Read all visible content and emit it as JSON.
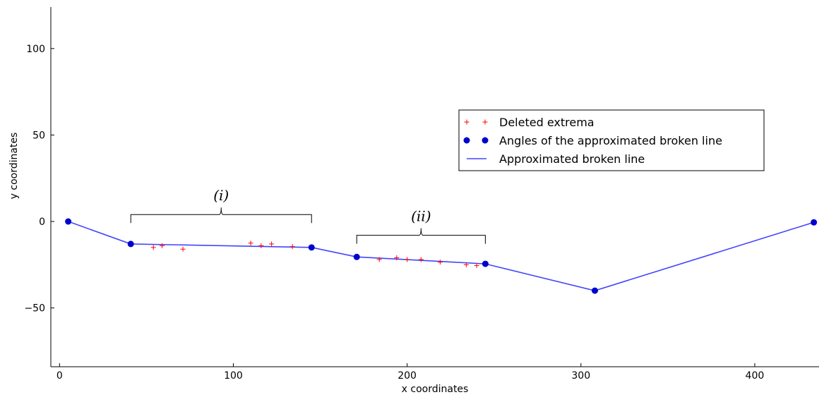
{
  "chart_data": {
    "type": "line",
    "xlabel": "x coordinates",
    "ylabel": "y coordinates",
    "xlim": [
      -5,
      437
    ],
    "ylim": [
      -84,
      124
    ],
    "xticks": [
      0,
      100,
      200,
      300,
      400
    ],
    "yticks": [
      -50,
      0,
      50,
      100
    ],
    "xtick_labels": [
      "0",
      "100",
      "200",
      "300",
      "400"
    ],
    "ytick_labels": [
      "−50",
      "0",
      "50",
      "100"
    ],
    "grid": false,
    "legend_position": "right",
    "series": [
      {
        "name": "Deleted extrema",
        "kind": "scatter",
        "marker": "+",
        "color": "#ff0000",
        "points": [
          [
            54,
            -15
          ],
          [
            59,
            -14
          ],
          [
            71,
            -16
          ],
          [
            110,
            -12.5
          ],
          [
            116,
            -14
          ],
          [
            122,
            -13
          ],
          [
            134,
            -14.5
          ],
          [
            184,
            -22
          ],
          [
            194,
            -21
          ],
          [
            200,
            -22
          ],
          [
            208,
            -22
          ],
          [
            219,
            -23.5
          ],
          [
            234,
            -25
          ],
          [
            240,
            -25.5
          ]
        ]
      },
      {
        "name": "Angles of the approximated broken line",
        "kind": "scatter",
        "marker": "o",
        "color": "#0000cc",
        "points": [
          [
            5,
            0
          ],
          [
            41,
            -13
          ],
          [
            145,
            -15
          ],
          [
            171,
            -20.5
          ],
          [
            245,
            -24.5
          ],
          [
            308,
            -40
          ],
          [
            434,
            -0.5
          ]
        ]
      },
      {
        "name": "Approximated broken line",
        "kind": "line",
        "color": "#4444ff",
        "points": [
          [
            5,
            0
          ],
          [
            41,
            -13
          ],
          [
            145,
            -15
          ],
          [
            171,
            -20.5
          ],
          [
            245,
            -24.5
          ],
          [
            308,
            -40
          ],
          [
            434,
            -0.5
          ]
        ]
      }
    ],
    "annotations": [
      {
        "label": "(i)",
        "x_start": 41,
        "x_end": 145,
        "y": 4
      },
      {
        "label": "(ii)",
        "x_start": 171,
        "x_end": 245,
        "y": -8
      }
    ]
  }
}
